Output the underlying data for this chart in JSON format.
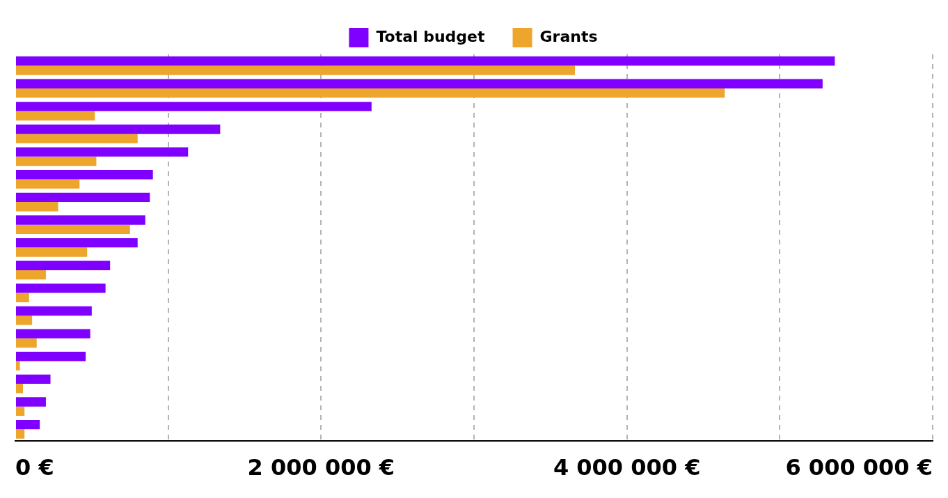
{
  "chart_data": {
    "type": "bar",
    "orientation": "horizontal",
    "categories": [
      null,
      null,
      null,
      null,
      null,
      null,
      null,
      null,
      null,
      null,
      null,
      null,
      null,
      null,
      null,
      null,
      null
    ],
    "series": [
      {
        "name": "Total budget",
        "color": "#8000ff",
        "values": [
          5360000,
          5280000,
          2330000,
          1340000,
          1130000,
          900000,
          880000,
          850000,
          800000,
          620000,
          590000,
          500000,
          490000,
          460000,
          230000,
          200000,
          160000
        ]
      },
      {
        "name": "Grants",
        "color": "#eda52b",
        "values": [
          3660000,
          4640000,
          520000,
          800000,
          530000,
          420000,
          280000,
          750000,
          470000,
          200000,
          90000,
          110000,
          140000,
          30000,
          50000,
          60000,
          60000
        ]
      }
    ],
    "xlim": [
      0,
      6000000
    ],
    "xticks": [
      {
        "value": 0,
        "label": "0 €"
      },
      {
        "value": 1000000,
        "label": null
      },
      {
        "value": 2000000,
        "label": "2 000 000 €"
      },
      {
        "value": 3000000,
        "label": null
      },
      {
        "value": 4000000,
        "label": "4 000 000 €"
      },
      {
        "value": 5000000,
        "label": null
      },
      {
        "value": 6000000,
        "label": "6 000 000 €"
      }
    ],
    "grid": "x",
    "legend": "top"
  }
}
